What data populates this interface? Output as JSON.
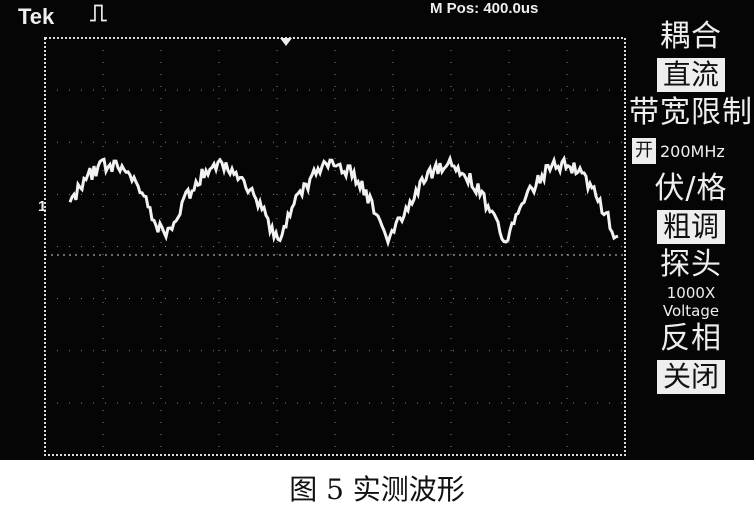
{
  "scope": {
    "brand": "Tek",
    "trigger_icon": "pulse-icon",
    "mpos": "M Pos: 400.0us",
    "channel_marker": "1",
    "menu": {
      "coupling_title": "耦合",
      "coupling_value": "直流",
      "bw_title": "带宽限制",
      "bw_value": "开",
      "bw_freq": "200MHz",
      "vdiv_title": "伏/格",
      "vdiv_value": "粗调",
      "probe_title": "探头",
      "probe_value": "1000X",
      "probe_type": "Voltage",
      "invert_title": "反相",
      "invert_value": "关闭"
    }
  },
  "caption": "图 5 实测波形"
}
